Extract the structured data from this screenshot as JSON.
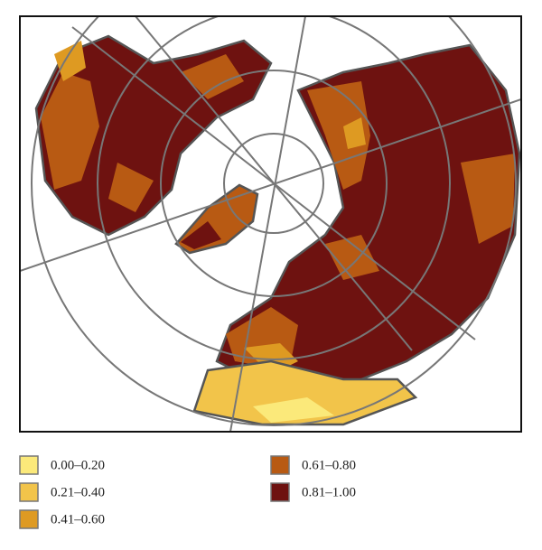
{
  "legend": {
    "items": [
      {
        "label": "0.00–0.20",
        "color": "#fbe97a"
      },
      {
        "label": "0.21–0.40",
        "color": "#f2c44a"
      },
      {
        "label": "0.41–0.60",
        "color": "#de9a22"
      },
      {
        "label": "0.61–0.80",
        "color": "#b85a13"
      },
      {
        "label": "0.81–1.00",
        "color": "#6e1210"
      }
    ]
  }
}
